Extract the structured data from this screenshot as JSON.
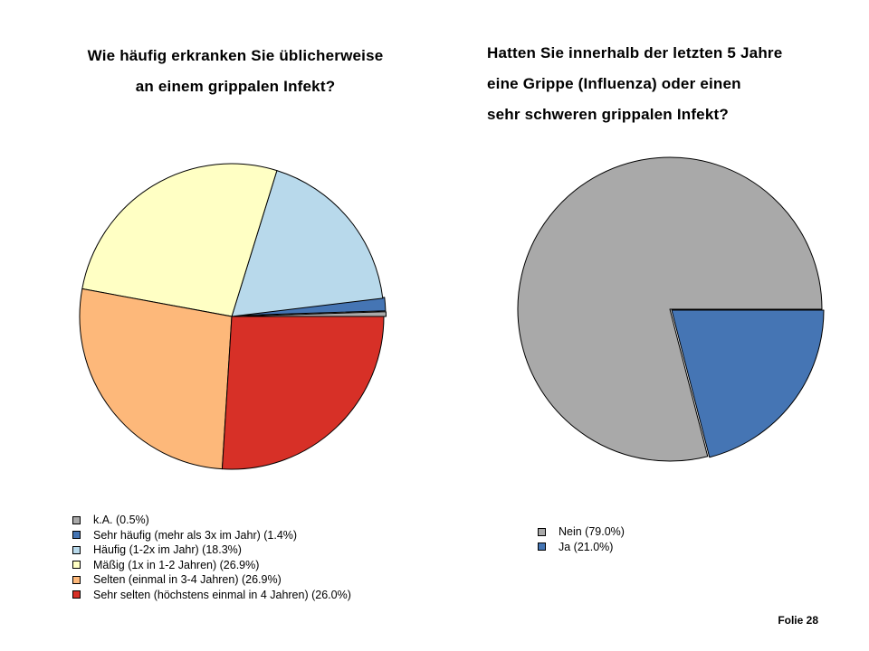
{
  "chart_data": [
    {
      "type": "pie",
      "title_lines": [
        "Wie häufig erkranken Sie üblicherweise",
        "an einem grippalen Infekt?"
      ],
      "slices": [
        {
          "label": "k.A. (0.5%)",
          "value": 0.5,
          "color": "#a9a9a9"
        },
        {
          "label": "Sehr häufig (mehr als 3x im Jahr) (1.4%)",
          "value": 1.4,
          "color": "#4575b4"
        },
        {
          "label": "Häufig (1-2x im Jahr) (18.3%)",
          "value": 18.3,
          "color": "#b8d9eb"
        },
        {
          "label": "Mäßig (1x in 1-2 Jahren) (26.9%)",
          "value": 26.9,
          "color": "#ffffc4"
        },
        {
          "label": "Selten (einmal in 3-4 Jahren) (26.9%)",
          "value": 26.9,
          "color": "#fdb87a"
        },
        {
          "label": "Sehr selten (höchstens einmal in 4 Jahren) (26.0%)",
          "value": 26.0,
          "color": "#d73027"
        }
      ],
      "legend_position": "bottom-left"
    },
    {
      "type": "pie",
      "title_lines": [
        "Hatten Sie innerhalb der letzten 5 Jahre",
        "eine Grippe (Influenza) oder einen",
        "sehr schweren grippalen Infekt?"
      ],
      "slices": [
        {
          "label": "Nein (79.0%)",
          "value": 79.0,
          "color": "#a9a9a9"
        },
        {
          "label": "Ja (21.0%)",
          "value": 21.0,
          "color": "#4575b4"
        }
      ],
      "legend_position": "bottom-left"
    }
  ],
  "footer": {
    "slide_label": "Folie 28"
  }
}
